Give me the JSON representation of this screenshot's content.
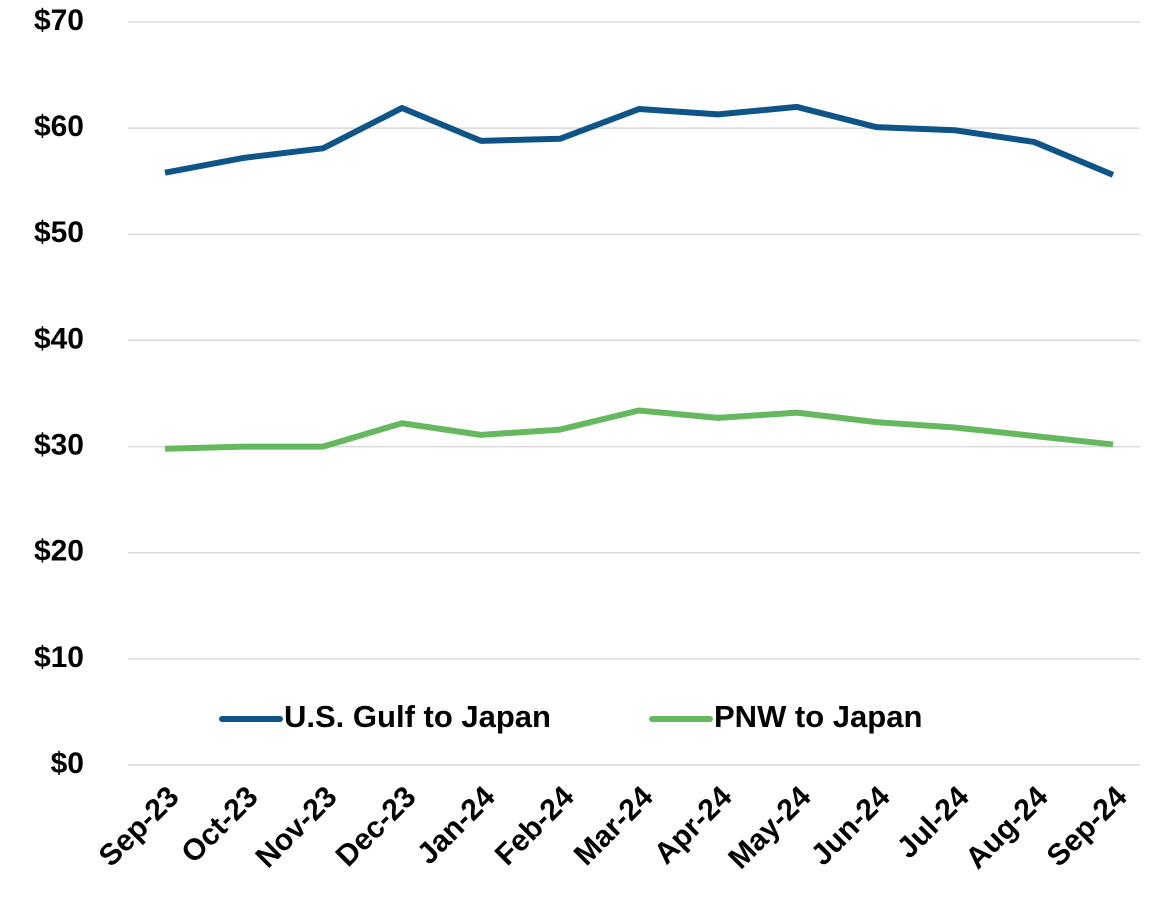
{
  "chart_data": {
    "type": "line",
    "categories": [
      "Sep-23",
      "Oct-23",
      "Nov-23",
      "Dec-23",
      "Jan-24",
      "Feb-24",
      "Mar-24",
      "Apr-24",
      "May-24",
      "Jun-24",
      "Jul-24",
      "Aug-24",
      "Sep-24"
    ],
    "series": [
      {
        "name": "U.S. Gulf to Japan",
        "color": "#0f5487",
        "values": [
          55.8,
          57.2,
          58.1,
          61.9,
          58.8,
          59.0,
          61.8,
          61.3,
          62.0,
          60.1,
          59.8,
          58.7,
          55.6
        ]
      },
      {
        "name": "PNW to Japan",
        "color": "#66b85e",
        "values": [
          29.8,
          30.0,
          30.0,
          32.2,
          31.1,
          31.6,
          33.4,
          32.7,
          33.2,
          32.3,
          31.8,
          31.0,
          30.2
        ]
      }
    ],
    "ylim": [
      0,
      70
    ],
    "yticks": [
      {
        "value": 0,
        "label": "$0"
      },
      {
        "value": 10,
        "label": "$10"
      },
      {
        "value": 20,
        "label": "$20"
      },
      {
        "value": 30,
        "label": "$30"
      },
      {
        "value": 40,
        "label": "$40"
      },
      {
        "value": 50,
        "label": "$50"
      },
      {
        "value": 60,
        "label": "$60"
      },
      {
        "value": 70,
        "label": "$70"
      }
    ],
    "grid": true,
    "legend": "bottom"
  }
}
